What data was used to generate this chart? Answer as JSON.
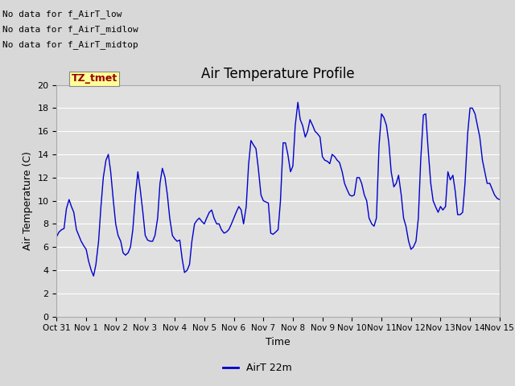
{
  "title": "Air Temperature Profile",
  "xlabel": "Time",
  "ylabel": "Air Temperature (C)",
  "ylim": [
    0,
    20
  ],
  "xlim_days": [
    0,
    15
  ],
  "background_color": "#d8d8d8",
  "plot_bg_color": "#e0e0e0",
  "line_color": "#0000cc",
  "legend_label": "AirT 22m",
  "annotations": [
    "No data for f_AirT_low",
    "No data for f_AirT_midlow",
    "No data for f_AirT_midtop"
  ],
  "annotation_box_text": "TZ_tmet",
  "annotation_box_color": "#990000",
  "annotation_box_bg": "#ffff99",
  "yticks": [
    0,
    2,
    4,
    6,
    8,
    10,
    12,
    14,
    16,
    18,
    20
  ],
  "xtick_labels": [
    "Oct 31",
    "Nov 1",
    "Nov 2",
    "Nov 3",
    "Nov 4",
    "Nov 5",
    "Nov 6",
    "Nov 7",
    "Nov 8",
    "Nov 9",
    "Nov 10",
    "Nov 11",
    "Nov 12",
    "Nov 13",
    "Nov 14",
    "Nov 15"
  ],
  "time_days": [
    0.0,
    0.08,
    0.17,
    0.25,
    0.33,
    0.42,
    0.5,
    0.58,
    0.67,
    0.75,
    0.83,
    0.92,
    1.0,
    1.08,
    1.17,
    1.25,
    1.33,
    1.42,
    1.5,
    1.58,
    1.67,
    1.75,
    1.83,
    1.92,
    2.0,
    2.08,
    2.17,
    2.25,
    2.33,
    2.42,
    2.5,
    2.58,
    2.67,
    2.75,
    2.83,
    2.92,
    3.0,
    3.08,
    3.17,
    3.25,
    3.33,
    3.42,
    3.5,
    3.58,
    3.67,
    3.75,
    3.83,
    3.92,
    4.0,
    4.08,
    4.17,
    4.25,
    4.33,
    4.42,
    4.5,
    4.58,
    4.67,
    4.75,
    4.83,
    4.92,
    5.0,
    5.08,
    5.17,
    5.25,
    5.33,
    5.42,
    5.5,
    5.58,
    5.67,
    5.75,
    5.83,
    5.92,
    6.0,
    6.08,
    6.17,
    6.25,
    6.33,
    6.42,
    6.5,
    6.58,
    6.67,
    6.75,
    6.83,
    6.92,
    7.0,
    7.08,
    7.17,
    7.25,
    7.33,
    7.42,
    7.5,
    7.58,
    7.67,
    7.75,
    7.83,
    7.92,
    8.0,
    8.08,
    8.17,
    8.25,
    8.33,
    8.42,
    8.5,
    8.58,
    8.67,
    8.75,
    8.83,
    8.92,
    9.0,
    9.08,
    9.17,
    9.25,
    9.33,
    9.42,
    9.5,
    9.58,
    9.67,
    9.75,
    9.83,
    9.92,
    10.0,
    10.08,
    10.17,
    10.25,
    10.33,
    10.42,
    10.5,
    10.58,
    10.67,
    10.75,
    10.83,
    10.92,
    11.0,
    11.08,
    11.17,
    11.25,
    11.33,
    11.42,
    11.5,
    11.58,
    11.67,
    11.75,
    11.83,
    11.92,
    12.0,
    12.08,
    12.17,
    12.25,
    12.33,
    12.42,
    12.5,
    12.58,
    12.67,
    12.75,
    12.83,
    12.92,
    13.0,
    13.08,
    13.17,
    13.25,
    13.33,
    13.42,
    13.5,
    13.58,
    13.67,
    13.75,
    13.83,
    13.92,
    14.0,
    14.08,
    14.17,
    14.25,
    14.33,
    14.42,
    14.5,
    14.58,
    14.67,
    14.75,
    14.83,
    14.92,
    15.0
  ],
  "temp_values": [
    6.9,
    7.3,
    7.5,
    7.6,
    9.3,
    10.1,
    9.5,
    9.0,
    7.5,
    7.0,
    6.5,
    6.1,
    5.8,
    4.8,
    4.0,
    3.5,
    4.5,
    6.5,
    9.5,
    12.0,
    13.5,
    14.0,
    12.5,
    10.0,
    8.0,
    7.0,
    6.5,
    5.5,
    5.3,
    5.5,
    6.0,
    7.5,
    10.5,
    12.5,
    11.0,
    9.0,
    7.0,
    6.6,
    6.5,
    6.5,
    7.0,
    8.5,
    11.5,
    12.8,
    12.0,
    10.5,
    8.5,
    7.0,
    6.7,
    6.5,
    6.6,
    5.0,
    3.8,
    4.0,
    4.5,
    6.5,
    8.0,
    8.3,
    8.5,
    8.2,
    8.0,
    8.5,
    9.0,
    9.2,
    8.5,
    8.0,
    8.0,
    7.5,
    7.2,
    7.3,
    7.5,
    8.0,
    8.5,
    9.0,
    9.5,
    9.2,
    8.0,
    9.5,
    13.1,
    15.2,
    14.8,
    14.5,
    12.8,
    10.5,
    10.0,
    9.9,
    9.8,
    7.2,
    7.1,
    7.3,
    7.5,
    10.0,
    15.0,
    15.0,
    14.0,
    12.5,
    13.0,
    16.5,
    18.5,
    17.0,
    16.5,
    15.5,
    16.0,
    17.0,
    16.5,
    16.0,
    15.8,
    15.5,
    13.8,
    13.5,
    13.4,
    13.2,
    14.0,
    13.8,
    13.5,
    13.3,
    12.5,
    11.5,
    11.0,
    10.5,
    10.4,
    10.5,
    12.0,
    12.0,
    11.5,
    10.5,
    10.0,
    8.5,
    8.0,
    7.8,
    8.5,
    14.8,
    17.5,
    17.2,
    16.5,
    15.0,
    12.5,
    11.2,
    11.5,
    12.2,
    10.5,
    8.5,
    7.8,
    6.5,
    5.8,
    6.0,
    6.5,
    8.5,
    13.5,
    17.4,
    17.5,
    14.5,
    11.5,
    10.0,
    9.5,
    9.0,
    9.5,
    9.2,
    9.5,
    12.5,
    11.8,
    12.2,
    10.8,
    8.8,
    8.8,
    9.0,
    11.5,
    15.8,
    18.0,
    18.0,
    17.5,
    16.5,
    15.5,
    13.5,
    12.5,
    11.5,
    11.5,
    11.0,
    10.5,
    10.2,
    10.1
  ]
}
